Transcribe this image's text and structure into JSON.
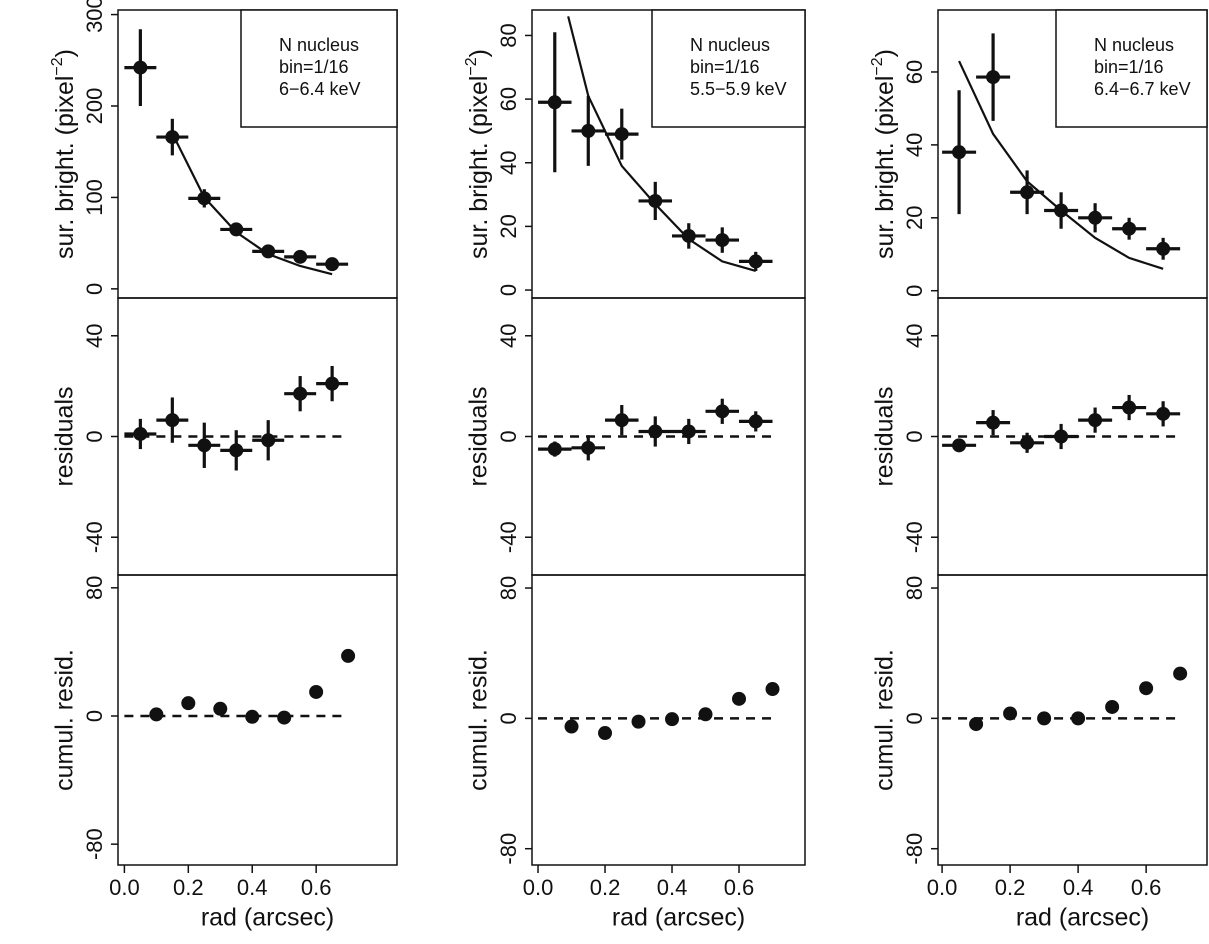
{
  "chart_data": [
    {
      "type": "scatter",
      "ylabel": [
        "sur. bright. (pixel",
        "−2",
        ")"
      ],
      "xlim": [
        -0.02,
        0.853
      ],
      "ylim": [
        -10,
        305
      ],
      "yticks": [
        0,
        100,
        200,
        300
      ],
      "annotation": [
        "N nucleus",
        "bin=1/16",
        "6−6.4 keV"
      ],
      "points": {
        "x": [
          0.05,
          0.15,
          0.25,
          0.35,
          0.45,
          0.55,
          0.65
        ],
        "values": [
          242,
          166,
          99,
          65,
          41,
          35,
          27
        ],
        "yerr": [
          42,
          20,
          10,
          6,
          5,
          4,
          4
        ],
        "xerr": 0.05
      },
      "model": {
        "x": [
          0.15,
          0.25,
          0.35,
          0.45,
          0.55,
          0.65
        ],
        "values": [
          170,
          100,
          62,
          38,
          25,
          16
        ]
      }
    },
    {
      "type": "scatter",
      "ylabel": "residuals",
      "xlim": [
        -0.02,
        0.853
      ],
      "ylim": [
        -55,
        55
      ],
      "yticks": [
        -40,
        0,
        40
      ],
      "hline": 0,
      "points": {
        "x": [
          0.05,
          0.15,
          0.25,
          0.35,
          0.45,
          0.55,
          0.65
        ],
        "values": [
          1,
          6.5,
          -3.5,
          -5.5,
          -1.5,
          17,
          21
        ],
        "yerr": [
          6,
          9,
          9,
          8,
          8,
          7,
          7
        ],
        "xerr": 0.05
      }
    },
    {
      "type": "scatter",
      "ylabel": "cumul. resid.",
      "xlim": [
        -0.02,
        0.853
      ],
      "ylim": [
        -93,
        88
      ],
      "yticks": [
        -80,
        0,
        80
      ],
      "hline": 0,
      "xlabel": "rad (arcsec)",
      "xticks": [
        {
          "value": 0,
          "label": "0.0"
        },
        0.2,
        0.4,
        0.6
      ],
      "points": {
        "x": [
          0.1,
          0.2,
          0.3,
          0.4,
          0.5,
          0.6,
          0.7
        ],
        "values": [
          1,
          8,
          4.5,
          -0.5,
          -1,
          15,
          37.5
        ]
      }
    },
    {
      "type": "scatter",
      "ylabel": [
        "sur. bright. (pixel",
        "−2",
        ")"
      ],
      "xlim": [
        -0.018,
        0.797
      ],
      "ylim": [
        -2.5,
        88
      ],
      "yticks": [
        0,
        20,
        40,
        60,
        80
      ],
      "annotation": [
        "N nucleus",
        "bin=1/16",
        "5.5−5.9 keV"
      ],
      "points": {
        "x": [
          0.05,
          0.15,
          0.25,
          0.35,
          0.45,
          0.55,
          0.65
        ],
        "values": [
          59,
          50,
          49,
          28,
          17,
          15.7,
          9
        ],
        "yerr": [
          22,
          11,
          8,
          6,
          4,
          4,
          3
        ],
        "xerr": 0.05
      },
      "model": {
        "x": [
          0.09,
          0.15,
          0.25,
          0.35,
          0.45,
          0.55,
          0.65
        ],
        "values": [
          86,
          61,
          39,
          27,
          16,
          9,
          6
        ]
      }
    },
    {
      "type": "scatter",
      "ylabel": "residuals",
      "xlim": [
        -0.018,
        0.797
      ],
      "ylim": [
        -55,
        55
      ],
      "yticks": [
        -40,
        0,
        40
      ],
      "hline": 0,
      "points": {
        "x": [
          0.05,
          0.15,
          0.25,
          0.35,
          0.45,
          0.55,
          0.65
        ],
        "values": [
          -5,
          -4.5,
          6.5,
          2,
          2,
          10,
          6
        ],
        "yerr": [
          3,
          5,
          6,
          6,
          5,
          5,
          4
        ],
        "xerr": 0.05
      }
    },
    {
      "type": "scatter",
      "ylabel": "cumul. resid.",
      "xlim": [
        -0.018,
        0.797
      ],
      "ylim": [
        -90,
        88
      ],
      "yticks": [
        -80,
        0,
        80
      ],
      "hline": 0,
      "xlabel": "rad (arcsec)",
      "xticks": [
        {
          "value": 0,
          "label": "0.0"
        },
        0.2,
        0.4,
        0.6
      ],
      "points": {
        "x": [
          0.1,
          0.2,
          0.3,
          0.4,
          0.5,
          0.6,
          0.7
        ],
        "values": [
          -5,
          -9,
          -2,
          -0.5,
          2.5,
          12,
          18
        ]
      }
    },
    {
      "type": "scatter",
      "ylabel": [
        "sur. bright. (pixel",
        "−2",
        ")"
      ],
      "xlim": [
        -0.012,
        0.779
      ],
      "ylim": [
        -2,
        77
      ],
      "yticks": [
        0,
        20,
        40,
        60
      ],
      "annotation": [
        "N nucleus",
        "bin=1/16",
        "6.4−6.7 keV"
      ],
      "points": {
        "x": [
          0.05,
          0.15,
          0.25,
          0.35,
          0.45,
          0.55,
          0.65
        ],
        "values": [
          38,
          58.6,
          27,
          22,
          20,
          17,
          11.5
        ],
        "yerr": [
          17,
          12,
          6,
          5,
          4,
          3,
          3
        ],
        "xerr": 0.05
      },
      "model": {
        "x": [
          0.05,
          0.15,
          0.25,
          0.35,
          0.45,
          0.55,
          0.65
        ],
        "values": [
          63,
          43,
          30,
          22,
          14.5,
          9,
          6
        ]
      }
    },
    {
      "type": "scatter",
      "ylabel": "residuals",
      "xlim": [
        -0.012,
        0.779
      ],
      "ylim": [
        -55,
        55
      ],
      "yticks": [
        -40,
        0,
        40
      ],
      "hline": 0,
      "points": {
        "x": [
          0.05,
          0.15,
          0.25,
          0.35,
          0.45,
          0.55,
          0.65
        ],
        "values": [
          -3.5,
          5.5,
          -2.5,
          0,
          6.5,
          11.5,
          9
        ],
        "yerr": [
          2,
          5,
          4,
          5,
          5,
          5,
          5
        ],
        "xerr": 0.05
      }
    },
    {
      "type": "scatter",
      "ylabel": "cumul. resid.",
      "xlim": [
        -0.012,
        0.779
      ],
      "ylim": [
        -90,
        88
      ],
      "yticks": [
        -80,
        0,
        80
      ],
      "hline": 0,
      "xlabel": "rad (arcsec)",
      "xticks": [
        {
          "value": 0,
          "label": "0.0"
        },
        0.2,
        0.4,
        0.6
      ],
      "points": {
        "x": [
          0.1,
          0.2,
          0.3,
          0.4,
          0.5,
          0.6,
          0.7
        ],
        "values": [
          -3.5,
          3,
          0,
          0,
          7,
          18.5,
          27.5
        ]
      }
    }
  ]
}
